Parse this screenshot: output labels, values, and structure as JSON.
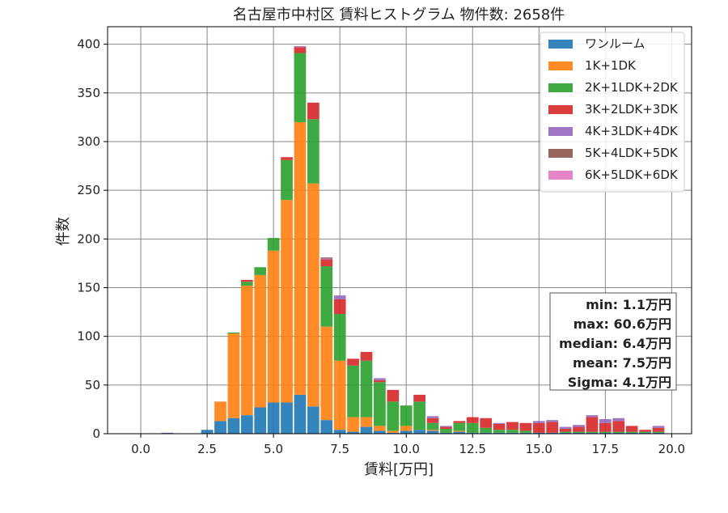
{
  "chart_data": {
    "type": "bar",
    "stacked": true,
    "title": "名古屋市中村区 賃料ヒストグラム 物件数: 2658件",
    "xlabel": "賃料[万円]",
    "ylabel": "件数",
    "xlim": [
      -1.25,
      20.75
    ],
    "ylim": [
      0,
      418
    ],
    "bin_width": 0.5,
    "x_ticks": [
      0.0,
      2.5,
      5.0,
      7.5,
      10.0,
      12.5,
      15.0,
      17.5,
      20.0
    ],
    "x_tick_labels": [
      "0.0",
      "2.5",
      "5.0",
      "7.5",
      "10.0",
      "12.5",
      "15.0",
      "17.5",
      "20.0"
    ],
    "y_ticks": [
      0,
      50,
      100,
      150,
      200,
      250,
      300,
      350,
      400
    ],
    "y_tick_labels": [
      "0",
      "50",
      "100",
      "150",
      "200",
      "250",
      "300",
      "350",
      "400"
    ],
    "grid": true,
    "legend_position": "top-right",
    "x": [
      1.0,
      2.5,
      3.0,
      3.5,
      4.0,
      4.5,
      5.0,
      5.5,
      6.0,
      6.5,
      7.0,
      7.5,
      8.0,
      8.5,
      9.0,
      9.5,
      10.0,
      10.5,
      11.0,
      11.5,
      12.0,
      12.5,
      13.0,
      13.5,
      14.0,
      14.5,
      15.0,
      15.5,
      16.0,
      16.5,
      17.0,
      17.5,
      18.0,
      18.5,
      19.0,
      19.5
    ],
    "series": [
      {
        "name": "ワンルーム",
        "color": "#1f77b4",
        "values": [
          0,
          4,
          13,
          16,
          19,
          27,
          32,
          32,
          40,
          28,
          14,
          4,
          2,
          7,
          3,
          1,
          3,
          4,
          3,
          1,
          2,
          1,
          1,
          1,
          1,
          1,
          1,
          1,
          1,
          1,
          1,
          1,
          1,
          1,
          1,
          1
        ]
      },
      {
        "name": "1K+1DK",
        "color": "#ff7f0e",
        "values": [
          0,
          0,
          20,
          87,
          133,
          136,
          156,
          208,
          280,
          229,
          96,
          71,
          15,
          10,
          5,
          2,
          5,
          0,
          1,
          0,
          1,
          0,
          0,
          0,
          0,
          0,
          0,
          0,
          0,
          0,
          0,
          0,
          0,
          0,
          0,
          0
        ]
      },
      {
        "name": "2K+1LDK+2DK",
        "color": "#2ca02c",
        "values": [
          0,
          0,
          0,
          1,
          4,
          8,
          13,
          41,
          71,
          66,
          62,
          48,
          53,
          58,
          45,
          30,
          21,
          29,
          7,
          4,
          8,
          10,
          5,
          3,
          3,
          2,
          0,
          0,
          1,
          1,
          1,
          1,
          1,
          1,
          1,
          1
        ]
      },
      {
        "name": "3K+2LDK+3DK",
        "color": "#d62728",
        "values": [
          0,
          0,
          0,
          0,
          2,
          0,
          0,
          3,
          6,
          17,
          7,
          15,
          7,
          9,
          2,
          12,
          0,
          7,
          5,
          2,
          2,
          6,
          10,
          6,
          8,
          8,
          10,
          11,
          3,
          5,
          15,
          9,
          11,
          6,
          2,
          4
        ]
      },
      {
        "name": "4K+3LDK+4DK",
        "color": "#9467bd",
        "values": [
          1,
          0,
          0,
          0,
          0,
          0,
          0,
          0,
          1,
          0,
          1,
          4,
          0,
          0,
          2,
          0,
          0,
          0,
          2,
          1,
          0,
          0,
          0,
          1,
          0,
          0,
          2,
          2,
          2,
          2,
          2,
          4,
          3,
          0,
          0,
          2
        ]
      },
      {
        "name": "5K+4LDK+5DK",
        "color": "#8c564b",
        "values": [
          0,
          0,
          0,
          0,
          0,
          0,
          0,
          0,
          0,
          0,
          1,
          0,
          0,
          0,
          0,
          0,
          0,
          0,
          0,
          0,
          0,
          0,
          0,
          0,
          0,
          0,
          0,
          0,
          0,
          0,
          0,
          0,
          0,
          0,
          0,
          0
        ]
      },
      {
        "name": "6K+5LDK+6DK",
        "color": "#e377c2",
        "values": [
          0,
          0,
          0,
          0,
          0,
          0,
          0,
          0,
          0,
          0,
          0,
          0,
          0,
          0,
          0,
          0,
          0,
          0,
          0,
          0,
          0,
          0,
          0,
          0,
          0,
          0,
          0,
          0,
          0,
          0,
          0,
          0,
          0,
          0,
          0,
          0
        ]
      }
    ],
    "stats_box": [
      "min: 1.1万円",
      "max: 60.6万円",
      "median: 6.4万円",
      "mean: 7.5万円",
      "Sigma: 4.1万円"
    ]
  }
}
